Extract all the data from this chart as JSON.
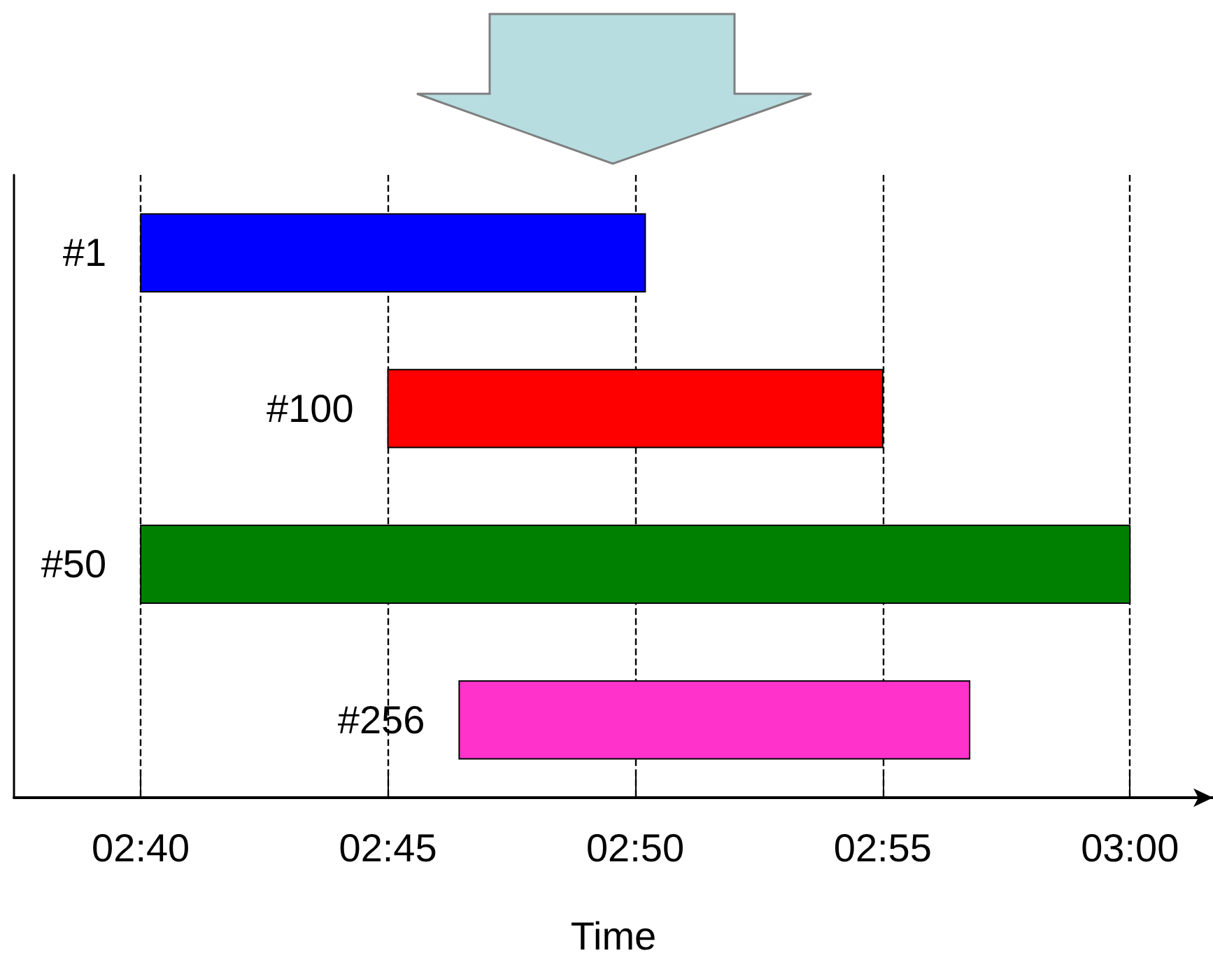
{
  "chart_data": {
    "type": "bar",
    "orientation": "horizontal",
    "xlabel": "Time",
    "categories": [
      "#1",
      "#100",
      "#50",
      "#256"
    ],
    "base": [
      2.6667,
      2.75,
      2.6667,
      2.774
    ],
    "values": [
      0.17,
      0.1667,
      0.3333,
      0.172
    ],
    "colors": [
      "#0000ff",
      "#ff0000",
      "#008000",
      "#ff33cc"
    ],
    "xlim": [
      2.624,
      3.028
    ],
    "xticks": [
      {
        "value": 2.6667,
        "label": "02:40"
      },
      {
        "value": 2.75,
        "label": "02:45"
      },
      {
        "value": 2.8333,
        "label": "02:50"
      },
      {
        "value": 2.9167,
        "label": "02:55"
      },
      {
        "value": 3,
        "label": "03:00"
      }
    ],
    "grid": "x",
    "tick_labels": "x"
  }
}
